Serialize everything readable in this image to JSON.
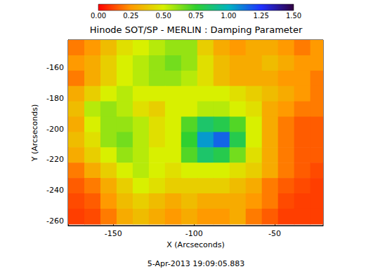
{
  "chart_data": {
    "type": "heatmap",
    "title": "Hinode SOT/SP - MERLIN : Damping Parameter",
    "x_label": "X (Arcseconds)",
    "y_label": "Y (Arcseconds)",
    "annotation": "5-Apr-2013 19:09:05.883",
    "xlim": [
      -178,
      -20
    ],
    "ylim": [
      -263,
      -142
    ],
    "xticks": [
      -150,
      -100,
      -50
    ],
    "yticks": [
      -260,
      -240,
      -220,
      -200,
      -180,
      -160
    ],
    "grid": false,
    "cell_x": [
      -173,
      -163,
      -153,
      -143,
      -133,
      -123,
      -113,
      -103,
      -93,
      -83,
      -73,
      -63,
      -53,
      -43,
      -33,
      -23
    ],
    "cell_y": [
      -147,
      -157,
      -167,
      -177,
      -187,
      -197,
      -207,
      -217,
      -227,
      -237,
      -247,
      -257
    ],
    "cells": [
      [
        0.2,
        0.25,
        0.35,
        0.45,
        0.5,
        0.55,
        0.6,
        0.6,
        0.4,
        0.3,
        0.25,
        0.3,
        0.3,
        0.25,
        0.2,
        0.25
      ],
      [
        0.25,
        0.3,
        0.4,
        0.5,
        0.55,
        0.6,
        0.65,
        0.6,
        0.45,
        0.35,
        0.3,
        0.3,
        0.35,
        0.3,
        0.25,
        0.25
      ],
      [
        0.2,
        0.3,
        0.4,
        0.5,
        0.55,
        0.6,
        0.6,
        0.55,
        0.45,
        0.35,
        0.3,
        0.3,
        0.3,
        0.25,
        0.25,
        0.2
      ],
      [
        0.3,
        0.4,
        0.5,
        0.55,
        0.5,
        0.5,
        0.5,
        0.5,
        0.5,
        0.5,
        0.45,
        0.4,
        0.35,
        0.3,
        0.25,
        0.2
      ],
      [
        0.35,
        0.55,
        0.6,
        0.55,
        0.45,
        0.4,
        0.5,
        0.5,
        0.55,
        0.55,
        0.5,
        0.45,
        0.3,
        0.25,
        0.2,
        0.2
      ],
      [
        0.3,
        0.5,
        0.6,
        0.6,
        0.55,
        0.45,
        0.5,
        0.7,
        0.85,
        0.8,
        0.7,
        0.5,
        0.3,
        0.2,
        0.15,
        0.15
      ],
      [
        0.35,
        0.45,
        0.6,
        0.65,
        0.55,
        0.45,
        0.5,
        0.75,
        1.05,
        1.15,
        0.8,
        0.5,
        0.3,
        0.2,
        0.15,
        0.15
      ],
      [
        0.3,
        0.4,
        0.5,
        0.6,
        0.55,
        0.5,
        0.5,
        0.7,
        0.85,
        0.8,
        0.65,
        0.45,
        0.3,
        0.2,
        0.15,
        0.15
      ],
      [
        0.2,
        0.3,
        0.4,
        0.5,
        0.55,
        0.5,
        0.45,
        0.5,
        0.5,
        0.5,
        0.45,
        0.4,
        0.3,
        0.2,
        0.15,
        0.12
      ],
      [
        0.15,
        0.2,
        0.3,
        0.4,
        0.5,
        0.45,
        0.4,
        0.4,
        0.4,
        0.4,
        0.35,
        0.3,
        0.2,
        0.15,
        0.12,
        0.1
      ],
      [
        0.12,
        0.15,
        0.25,
        0.35,
        0.4,
        0.35,
        0.3,
        0.35,
        0.3,
        0.3,
        0.3,
        0.25,
        0.2,
        0.12,
        0.1,
        0.1
      ],
      [
        0.1,
        0.12,
        0.2,
        0.3,
        0.35,
        0.3,
        0.25,
        0.3,
        0.25,
        0.25,
        0.3,
        0.2,
        0.15,
        0.1,
        0.1,
        0.1
      ]
    ],
    "colorbar_range": [
      0,
      1.5
    ],
    "colorbar_ticks": [
      {
        "value": 0,
        "label": "0.00"
      },
      {
        "value": 0.25,
        "label": "0.25"
      },
      {
        "value": 0.5,
        "label": "0.50"
      },
      {
        "value": 0.75,
        "label": "0.75"
      },
      {
        "value": 1,
        "label": "1.00"
      },
      {
        "value": 1.25,
        "label": "1.25"
      },
      {
        "value": 1.5,
        "label": "1.50"
      }
    ]
  }
}
